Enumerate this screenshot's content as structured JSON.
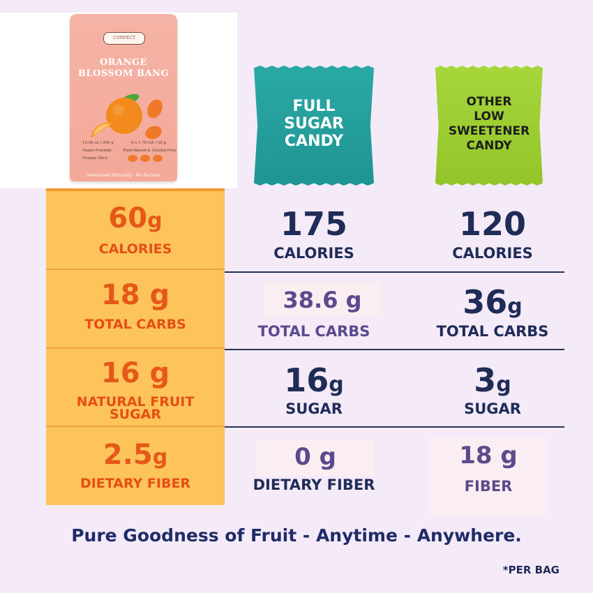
{
  "brand_product": {
    "logo_text": "CONFECT",
    "title_line1": "ORANGE",
    "title_line2": "BLOSSOM BANG",
    "weight_left": "10.56 oz / 300 g",
    "weight_right": "6 x 1.76 OZ / 50 g",
    "claims": [
      "Vegan Friendly",
      "Plant-Based & Gelatin-Free",
      "Orange Slice"
    ],
    "tagline": "Sweetened Naturally - No Sucrose"
  },
  "packets": {
    "full_sugar": "FULL\nSUGAR\nCANDY",
    "other_low": "OTHER\nLOW\nSWEETENER\nCANDY"
  },
  "comparison": {
    "rows": [
      {
        "ours": {
          "value": "60",
          "unit": "g",
          "label": "CALORIES"
        },
        "full_sugar": {
          "value": "175",
          "unit": "",
          "label": "CALORIES"
        },
        "low_sweetener": {
          "value": "120",
          "unit": "",
          "label": "CALORIES"
        }
      },
      {
        "ours": {
          "value": "18 g",
          "unit": "",
          "label": "TOTAL CARBS"
        },
        "full_sugar": {
          "value": "38.6 g",
          "unit": "",
          "label": "TOTAL CARBS"
        },
        "low_sweetener": {
          "value": "36",
          "unit": "g",
          "label": "TOTAL CARBS"
        }
      },
      {
        "ours": {
          "value": "16 g",
          "unit": "",
          "label_line1": "NATURAL  FRUIT",
          "label_line2": "SUGAR"
        },
        "full_sugar": {
          "value": "16",
          "unit": "g",
          "label": "SUGAR"
        },
        "low_sweetener": {
          "value": "3",
          "unit": "g",
          "label": "SUGAR"
        }
      },
      {
        "ours": {
          "value": "2.5",
          "unit": "g",
          "label": "DIETARY FIBER"
        },
        "full_sugar": {
          "value": "0 g",
          "unit": "",
          "label": "DIETARY FIBER"
        },
        "low_sweetener": {
          "value": "18 g",
          "unit": "",
          "label": "FIBER"
        }
      }
    ]
  },
  "footer": {
    "tagline": "Pure Goodness of Fruit - Anytime - Anywhere.",
    "note": "*PER BAG"
  },
  "colors": {
    "background": "#f4eaf8",
    "orange_column": "#fcc45b",
    "orange_text": "#e65818",
    "navy_text": "#1f2c57",
    "purple_text": "#5b4a8c",
    "teal_packet": "#2aa9a6",
    "green_packet": "#a6d63a",
    "bag_pink": "#f5b3a6"
  }
}
